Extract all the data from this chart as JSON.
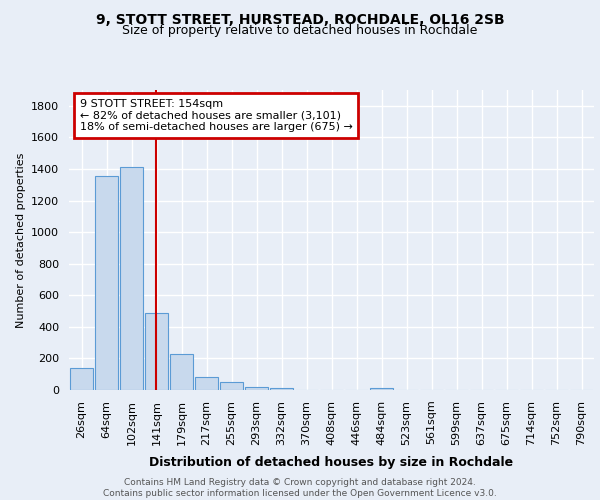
{
  "title1": "9, STOTT STREET, HURSTEAD, ROCHDALE, OL16 2SB",
  "title2": "Size of property relative to detached houses in Rochdale",
  "xlabel": "Distribution of detached houses by size in Rochdale",
  "ylabel": "Number of detached properties",
  "footnote": "Contains HM Land Registry data © Crown copyright and database right 2024.\nContains public sector information licensed under the Open Government Licence v3.0.",
  "categories": [
    "26sqm",
    "64sqm",
    "102sqm",
    "141sqm",
    "179sqm",
    "217sqm",
    "255sqm",
    "293sqm",
    "332sqm",
    "370sqm",
    "408sqm",
    "446sqm",
    "484sqm",
    "523sqm",
    "561sqm",
    "599sqm",
    "637sqm",
    "675sqm",
    "714sqm",
    "752sqm",
    "790sqm"
  ],
  "values": [
    140,
    1355,
    1410,
    490,
    230,
    85,
    50,
    20,
    15,
    0,
    0,
    0,
    15,
    0,
    0,
    0,
    0,
    0,
    0,
    0,
    0
  ],
  "bar_color": "#c8d9ed",
  "bar_edge_color": "#5b9bd5",
  "red_line_x": 3.0,
  "annotation_text": "9 STOTT STREET: 154sqm\n← 82% of detached houses are smaller (3,101)\n18% of semi-detached houses are larger (675) →",
  "annotation_box_color": "#ffffff",
  "annotation_border_color": "#cc0000",
  "ylim": [
    0,
    1900
  ],
  "yticks": [
    0,
    200,
    400,
    600,
    800,
    1000,
    1200,
    1400,
    1600,
    1800
  ],
  "background_color": "#e8eef7",
  "grid_color": "#ffffff",
  "title1_fontsize": 10,
  "title2_fontsize": 9,
  "xlabel_fontsize": 9,
  "ylabel_fontsize": 8,
  "tick_fontsize": 8,
  "footnote_fontsize": 6.5,
  "ann_fontsize": 8
}
